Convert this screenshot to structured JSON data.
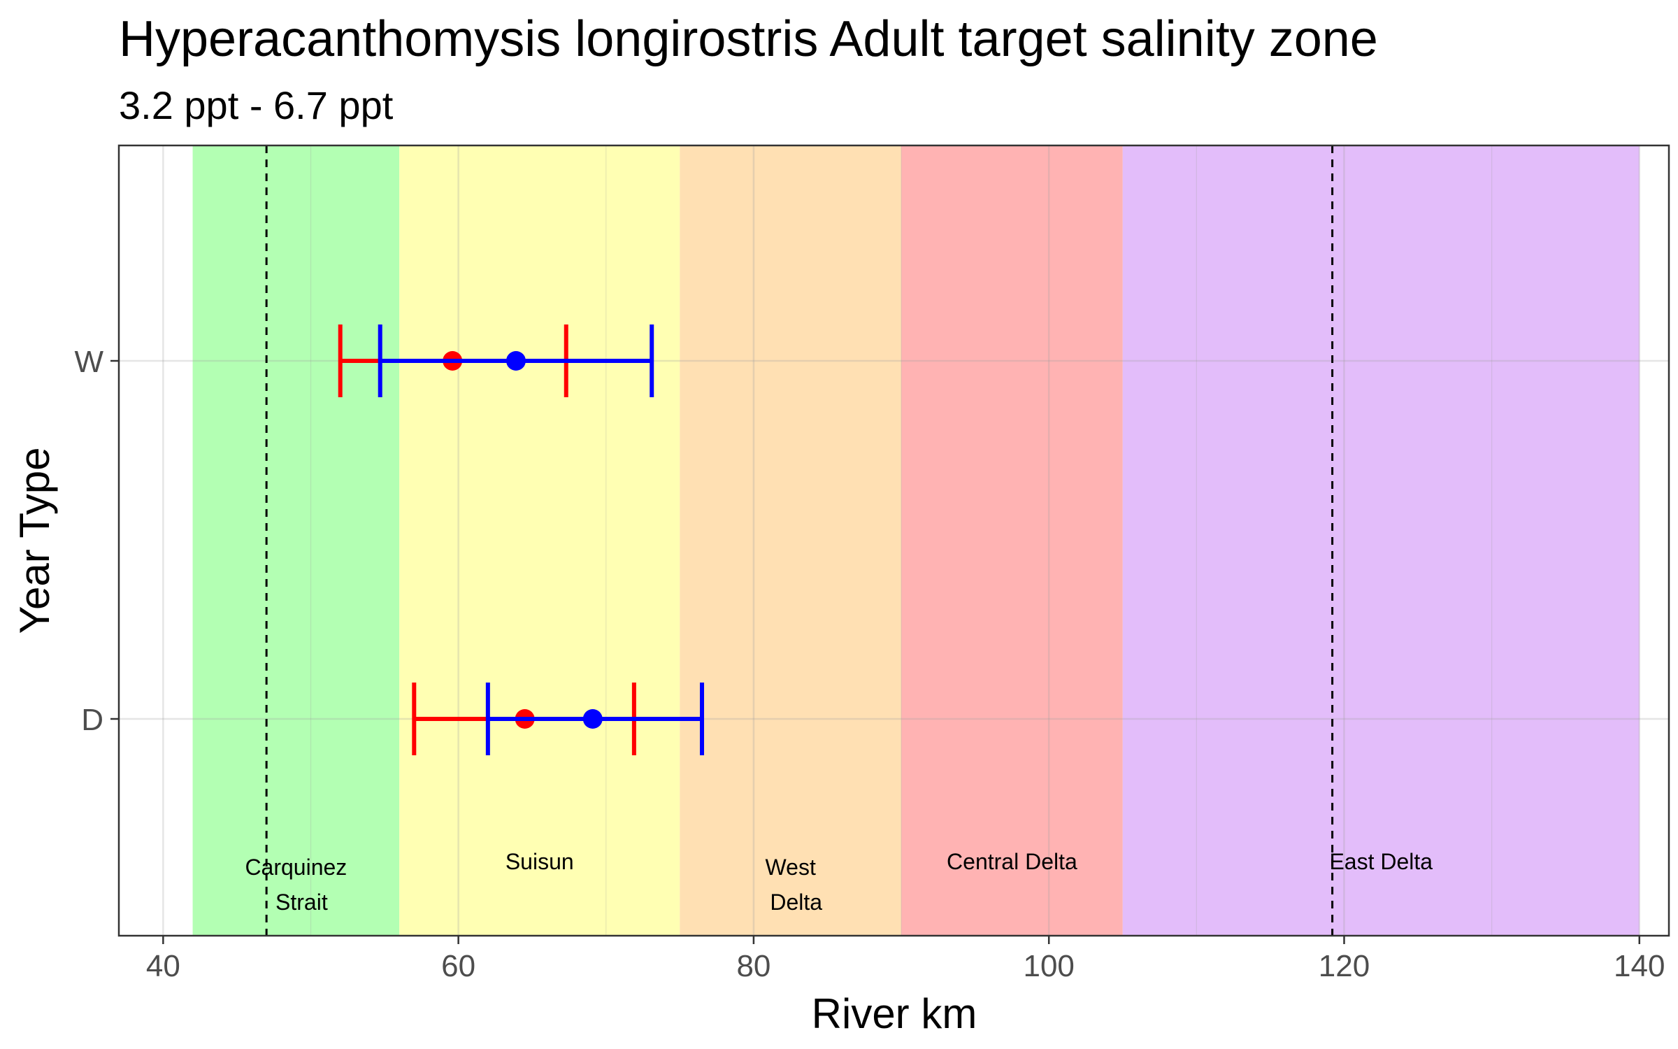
{
  "chart_data": {
    "type": "errorbar",
    "title": "Hyperacanthomysis longirostris Adult  target salinity zone",
    "subtitle": "3.2 ppt - 6.7 ppt",
    "xlabel": "River km",
    "ylabel": "Year Type",
    "xlim": [
      37,
      142
    ],
    "x_ticks": [
      40,
      60,
      80,
      100,
      120,
      140
    ],
    "categories": [
      "W",
      "D"
    ],
    "grid": true,
    "regions": [
      {
        "name": "Carquinez Strait",
        "label_lines": [
          "Carquinez",
          "Strait"
        ],
        "x0": 42,
        "x1": 56,
        "color": "#b3ffb3"
      },
      {
        "name": "Suisun",
        "label_lines": [
          "Suisun"
        ],
        "x0": 56,
        "x1": 75,
        "color": "#ffffb3"
      },
      {
        "name": "West Delta",
        "label_lines": [
          "West",
          "Delta"
        ],
        "x0": 75,
        "x1": 90,
        "color": "#ffe0b3"
      },
      {
        "name": "Central Delta",
        "label_lines": [
          "Central Delta"
        ],
        "x0": 90,
        "x1": 105,
        "color": "#ffb3b3"
      },
      {
        "name": "East Delta",
        "label_lines": [
          "East Delta"
        ],
        "x0": 105,
        "x1": 140,
        "color": "#e3bdfa"
      }
    ],
    "reference_lines": [
      47,
      119.2
    ],
    "series": [
      {
        "color": "#ff0000",
        "points": [
          {
            "category": "W",
            "center": 59.6,
            "low": 52.0,
            "high": 67.3
          },
          {
            "category": "D",
            "center": 64.5,
            "low": 57.0,
            "high": 71.9
          }
        ]
      },
      {
        "color": "#0000ff",
        "points": [
          {
            "category": "W",
            "center": 63.9,
            "low": 54.7,
            "high": 73.1
          },
          {
            "category": "D",
            "center": 69.1,
            "low": 62.0,
            "high": 76.5
          }
        ]
      }
    ]
  }
}
